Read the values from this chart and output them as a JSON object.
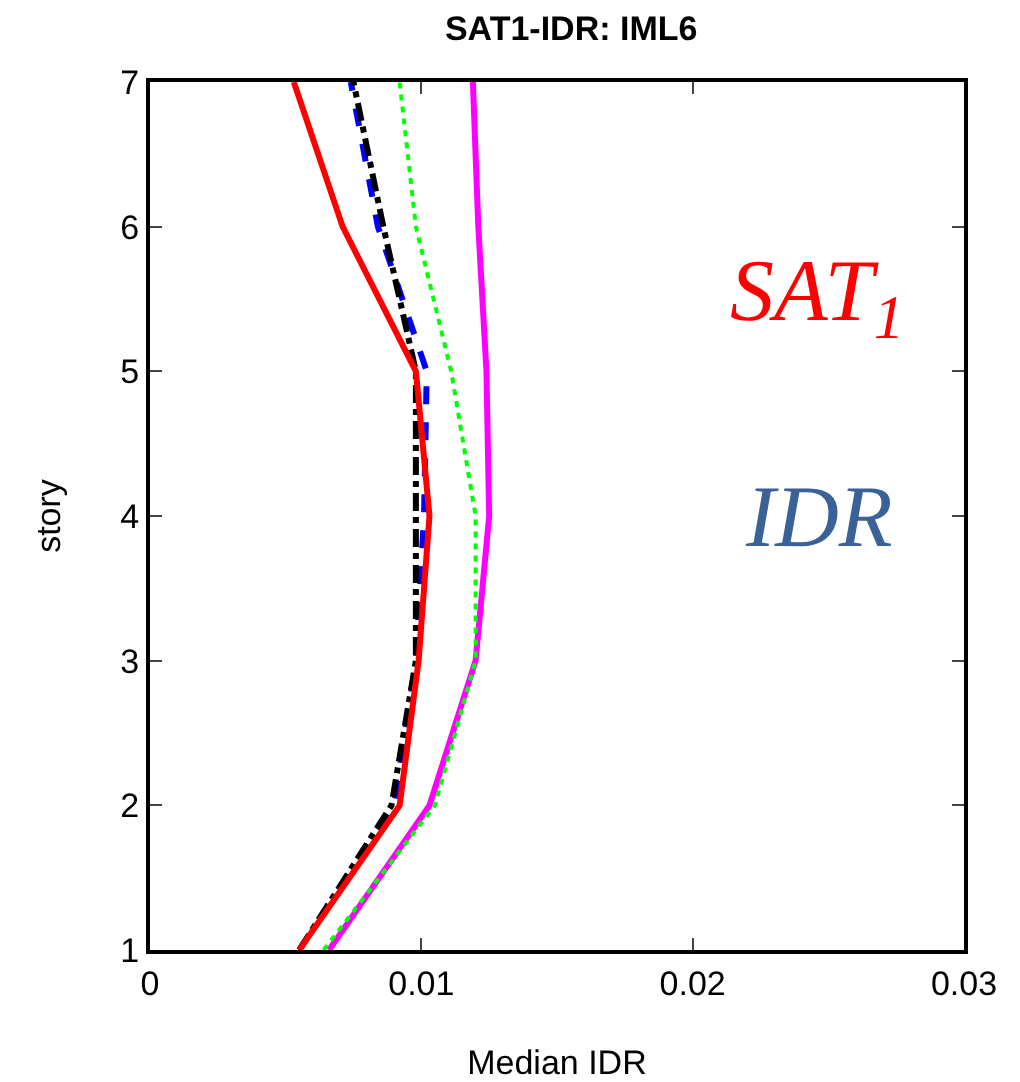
{
  "chart_data": {
    "type": "line",
    "title": "SAT1-IDR: IML6",
    "xlabel": "Median IDR",
    "ylabel": "story",
    "xlim": [
      0,
      0.03
    ],
    "xticks": [
      0,
      0.01,
      0.02,
      0.03
    ],
    "ylim": [
      1,
      7
    ],
    "yticks": [
      1,
      2,
      3,
      4,
      5,
      6,
      7
    ],
    "marker": "none",
    "annotations": [
      "SAT$_{1}$",
      "IDR"
    ],
    "series": [
      {
        "color": "#00ff00",
        "line_style": "dotted",
        "x": [
          0.0064,
          0.0105,
          0.012,
          0.012,
          0.0111,
          0.0098,
          0.0092
        ],
        "values": [
          1,
          2,
          3,
          4,
          5,
          6,
          7
        ]
      },
      {
        "color": "#0000ff",
        "line_style": "dashed",
        "x": [
          0.0055,
          0.009,
          0.0098,
          0.0101,
          0.0102,
          0.0084,
          0.0074
        ],
        "values": [
          1,
          2,
          3,
          4,
          5,
          6,
          7
        ]
      },
      {
        "color": "#000000",
        "line_style": "dashdot",
        "x": [
          0.0055,
          0.0089,
          0.0098,
          0.0098,
          0.0098,
          0.0086,
          0.0075
        ],
        "values": [
          1,
          2,
          3,
          4,
          5,
          6,
          7
        ]
      },
      {
        "color": "#ff00ff",
        "line_style": "solid",
        "x": [
          0.0066,
          0.0103,
          0.012,
          0.0125,
          0.0124,
          0.0121,
          0.0119
        ],
        "values": [
          1,
          2,
          3,
          4,
          5,
          6,
          7
        ]
      },
      {
        "color": "#ff0000",
        "line_style": "solid",
        "x": [
          0.0055,
          0.0092,
          0.0099,
          0.0103,
          0.0098,
          0.0071,
          0.0053
        ],
        "values": [
          1,
          2,
          3,
          4,
          5,
          6,
          7
        ]
      }
    ]
  }
}
